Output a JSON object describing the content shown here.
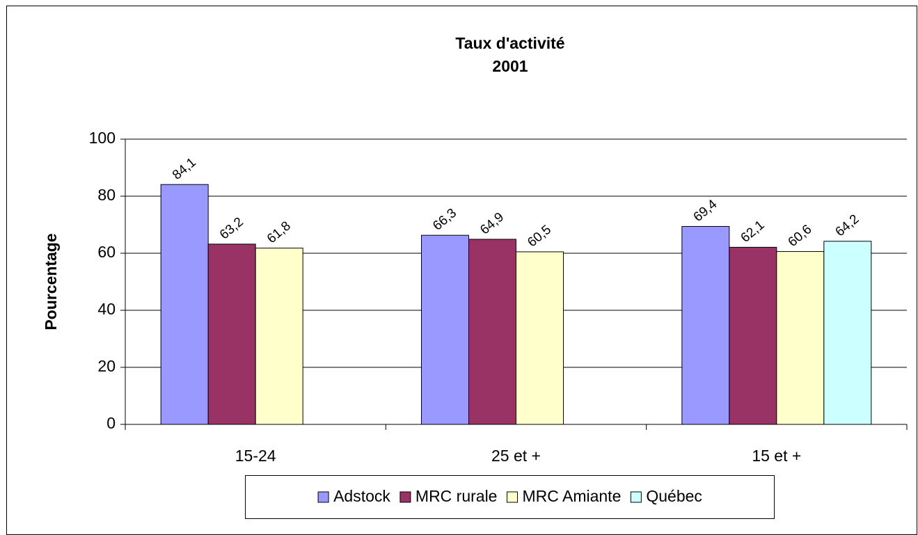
{
  "chart_data": {
    "type": "bar",
    "title": "Taux d'activité",
    "subtitle": "2001",
    "y_label": "Pourcentage",
    "categories": [
      "15-24",
      "25 et +",
      "15 et +"
    ],
    "series": [
      {
        "name": "Adstock",
        "color": "#9999ff",
        "values": [
          84.1,
          66.3,
          69.4
        ],
        "value_labels": [
          "84,1",
          "66,3",
          "69,4"
        ]
      },
      {
        "name": "MRC rurale",
        "color": "#993366",
        "values": [
          63.2,
          64.9,
          62.1
        ],
        "value_labels": [
          "63,2",
          "64,9",
          "62,1"
        ]
      },
      {
        "name": "MRC Amiante",
        "color": "#ffffcc",
        "values": [
          61.8,
          60.5,
          60.6
        ],
        "value_labels": [
          "61,8",
          "60,5",
          "60,6"
        ]
      },
      {
        "name": "Québec",
        "color": "#ccffff",
        "values": [
          null,
          null,
          64.2
        ],
        "value_labels": [
          null,
          null,
          "64,2"
        ]
      }
    ],
    "ylim": [
      0,
      100
    ],
    "yticks": [
      0,
      20,
      40,
      60,
      80,
      100
    ],
    "grid": true,
    "legend": "bottom"
  }
}
